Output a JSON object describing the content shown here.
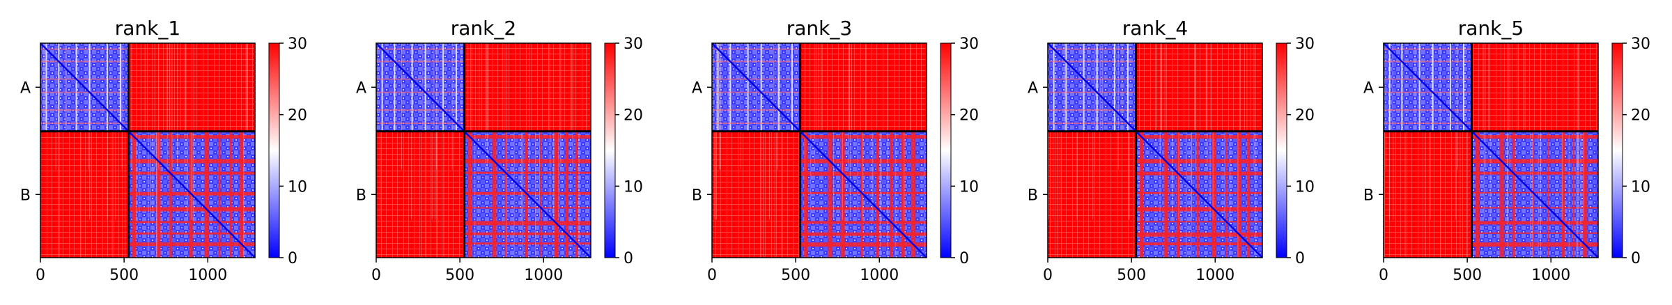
{
  "figure": {
    "colormap": {
      "low": "#0000ff",
      "mid": "#ffffff",
      "high": "#ff0000"
    }
  },
  "chart_data": [
    {
      "type": "heatmap",
      "title": "rank_1",
      "row_labels": [
        "A",
        "B"
      ],
      "x_ticks": [
        0,
        500,
        1000
      ],
      "xlim": [
        0,
        1282
      ],
      "chain_boundary": 527,
      "colorbar": {
        "ticks": [
          0,
          10,
          20,
          30
        ],
        "range": [
          0,
          30
        ]
      }
    },
    {
      "type": "heatmap",
      "title": "rank_2",
      "row_labels": [
        "A",
        "B"
      ],
      "x_ticks": [
        0,
        500,
        1000
      ],
      "xlim": [
        0,
        1282
      ],
      "chain_boundary": 527,
      "colorbar": {
        "ticks": [
          0,
          10,
          20,
          30
        ],
        "range": [
          0,
          30
        ]
      }
    },
    {
      "type": "heatmap",
      "title": "rank_3",
      "row_labels": [
        "A",
        "B"
      ],
      "x_ticks": [
        0,
        500,
        1000
      ],
      "xlim": [
        0,
        1282
      ],
      "chain_boundary": 527,
      "colorbar": {
        "ticks": [
          0,
          10,
          20,
          30
        ],
        "range": [
          0,
          30
        ]
      }
    },
    {
      "type": "heatmap",
      "title": "rank_4",
      "row_labels": [
        "A",
        "B"
      ],
      "x_ticks": [
        0,
        500,
        1000
      ],
      "xlim": [
        0,
        1282
      ],
      "chain_boundary": 527,
      "colorbar": {
        "ticks": [
          0,
          10,
          20,
          30
        ],
        "range": [
          0,
          30
        ]
      }
    },
    {
      "type": "heatmap",
      "title": "rank_5",
      "row_labels": [
        "A",
        "B"
      ],
      "x_ticks": [
        0,
        500,
        1000
      ],
      "xlim": [
        0,
        1282
      ],
      "chain_boundary": 527,
      "colorbar": {
        "ticks": [
          0,
          10,
          20,
          30
        ],
        "range": [
          0,
          30
        ]
      }
    }
  ]
}
